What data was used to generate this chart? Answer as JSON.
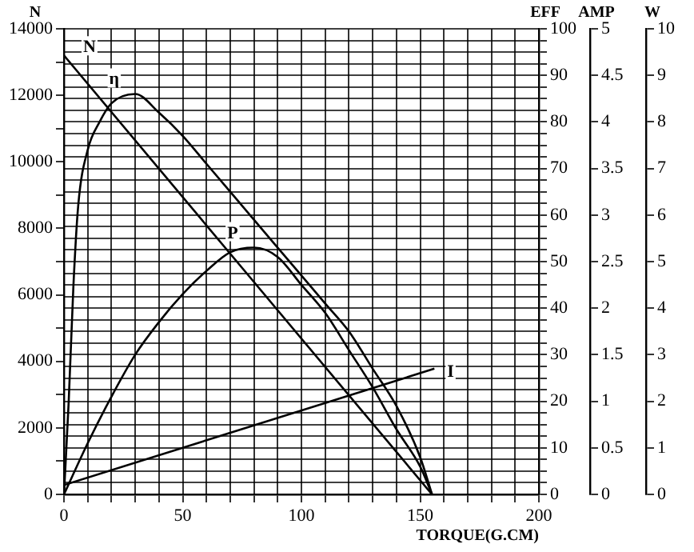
{
  "chart_data": [
    {
      "type": "line",
      "xlabel": "TORQUE(G.CM)",
      "ylabel": "N",
      "y2label": "EFF",
      "y3label": "AMP",
      "xlim": [
        0,
        200
      ],
      "xticks": [
        0,
        {
          "value": 10,
          "label": null
        },
        {
          "value": 20,
          "label": null
        },
        {
          "value": 30,
          "label": null
        },
        {
          "value": 40,
          "label": null
        },
        50,
        {
          "value": 60,
          "label": null
        },
        {
          "value": 70,
          "label": null
        },
        {
          "value": 80,
          "label": null
        },
        {
          "value": 90,
          "label": null
        },
        100,
        {
          "value": 110,
          "label": null
        },
        {
          "value": 120,
          "label": null
        },
        {
          "value": 130,
          "label": null
        },
        {
          "value": 140,
          "label": null
        },
        150,
        {
          "value": 160,
          "label": null
        },
        {
          "value": 170,
          "label": null
        },
        {
          "value": 180,
          "label": null
        },
        {
          "value": 190,
          "label": null
        },
        200
      ],
      "ylim": [
        0,
        14000
      ],
      "yticks": [
        0,
        {
          "value": 1000,
          "label": null
        },
        2000,
        {
          "value": 3000,
          "label": null
        },
        4000,
        {
          "value": 5000,
          "label": null
        },
        6000,
        {
          "value": 7000,
          "label": null
        },
        8000,
        {
          "value": 9000,
          "label": null
        },
        10000,
        {
          "value": 11000,
          "label": null
        },
        12000,
        {
          "value": 13000,
          "label": null
        },
        14000
      ],
      "y2lim": [
        0,
        100
      ],
      "y2ticks": [
        0,
        {
          "value": 2.5,
          "label": null
        },
        {
          "value": 5,
          "label": null
        },
        {
          "value": 7.5,
          "label": null
        },
        10,
        {
          "value": 12.5,
          "label": null
        },
        {
          "value": 15,
          "label": null
        },
        {
          "value": 17.5,
          "label": null
        },
        20,
        {
          "value": 22.5,
          "label": null
        },
        {
          "value": 25,
          "label": null
        },
        {
          "value": 27.5,
          "label": null
        },
        30,
        {
          "value": 32.5,
          "label": null
        },
        {
          "value": 35,
          "label": null
        },
        {
          "value": 37.5,
          "label": null
        },
        40,
        {
          "value": 42.5,
          "label": null
        },
        {
          "value": 45,
          "label": null
        },
        {
          "value": 47.5,
          "label": null
        },
        50,
        {
          "value": 52.5,
          "label": null
        },
        {
          "value": 55,
          "label": null
        },
        {
          "value": 57.5,
          "label": null
        },
        60,
        {
          "value": 62.5,
          "label": null
        },
        {
          "value": 65,
          "label": null
        },
        {
          "value": 67.5,
          "label": null
        },
        70,
        {
          "value": 72.5,
          "label": null
        },
        {
          "value": 75,
          "label": null
        },
        {
          "value": 77.5,
          "label": null
        },
        80,
        {
          "value": 82.5,
          "label": null
        },
        {
          "value": 85,
          "label": null
        },
        {
          "value": 87.5,
          "label": null
        },
        90,
        {
          "value": 92.5,
          "label": null
        },
        {
          "value": 95,
          "label": null
        },
        {
          "value": 97.5,
          "label": null
        },
        100
      ],
      "y3lim": [
        0,
        5
      ],
      "y3ticks": [
        0,
        0.5,
        1,
        1.5,
        2,
        2.5,
        3,
        3.5,
        4,
        4.5,
        5
      ],
      "grid": true,
      "marker": "none",
      "line_style": "solid",
      "series": [
        {
          "name": "N",
          "color": "#000000",
          "x": [
            0,
            155
          ],
          "values": [
            13200,
            0
          ]
        },
        {
          "name": "η",
          "color": "#000000",
          "axis": "y2",
          "x": [
            0,
            2,
            4,
            6,
            10,
            15,
            20,
            30,
            40,
            50,
            60,
            70,
            80,
            90,
            100,
            110,
            120,
            130,
            140,
            150,
            155
          ],
          "values": [
            0,
            20,
            45,
            62,
            74,
            80,
            84,
            86,
            82,
            77,
            71,
            65,
            59,
            53,
            47,
            41,
            35,
            27,
            19,
            8,
            0
          ]
        },
        {
          "name": "I",
          "color": "#000000",
          "axis": "y3",
          "x": [
            0,
            156
          ],
          "values": [
            0.1,
            1.35
          ]
        }
      ]
    },
    {
      "type": "line",
      "ylabel": "W",
      "xlim": [
        0,
        200
      ],
      "ylim": [
        0,
        10
      ],
      "yticks": [
        0,
        1,
        2,
        3,
        4,
        5,
        6,
        7,
        8,
        9,
        10
      ],
      "tick_labels": "y",
      "marker": "none",
      "line_style": "solid",
      "series": [
        {
          "name": "P",
          "color": "#000000",
          "x": [
            0,
            10,
            20,
            30,
            40,
            50,
            60,
            70,
            80,
            90,
            100,
            110,
            120,
            130,
            140,
            150,
            155
          ],
          "values": [
            0,
            1.1,
            2.1,
            3.0,
            3.7,
            4.3,
            4.8,
            5.2,
            5.3,
            5.1,
            4.5,
            3.9,
            3.1,
            2.3,
            1.4,
            0.6,
            0
          ]
        }
      ]
    }
  ]
}
